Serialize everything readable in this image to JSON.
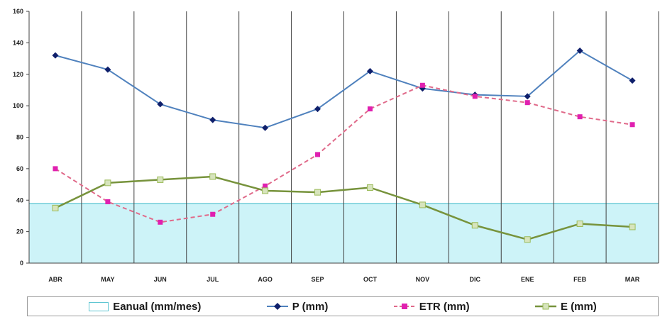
{
  "chart_data": {
    "type": "line",
    "categories": [
      "ABR",
      "MAY",
      "JUN",
      "JUL",
      "AGO",
      "SEP",
      "OCT",
      "NOV",
      "DIC",
      "ENE",
      "FEB",
      "MAR"
    ],
    "ylim": [
      0,
      160
    ],
    "yticks": [
      0,
      20,
      40,
      60,
      80,
      100,
      120,
      140,
      160
    ],
    "grid": {
      "vertical": true,
      "horizontal": false
    },
    "legend_position": "bottom",
    "series": [
      {
        "name": "Eanual (mm/mes)",
        "kind": "area",
        "color": "#cdf3f8",
        "edge_color": "#5fc6d2",
        "values": [
          37.9,
          37.9,
          37.9,
          37.9,
          37.9,
          37.9,
          37.9,
          37.9,
          37.9,
          37.9,
          37.9,
          37.9
        ]
      },
      {
        "name": "P (mm)",
        "kind": "line",
        "color": "#4f81bd",
        "marker": "diamond",
        "marker_color": "#0f1f6b",
        "values": [
          132,
          123,
          101,
          91,
          86,
          98,
          122,
          111,
          107,
          106,
          135,
          116
        ]
      },
      {
        "name": "ETR (mm)",
        "kind": "line",
        "color": "#e06a8a",
        "dash": true,
        "marker": "square",
        "marker_color": "#e020b0",
        "values": [
          60,
          39,
          26,
          31,
          49,
          69,
          98,
          113,
          106,
          102,
          93,
          88
        ]
      },
      {
        "name": "E (mm)",
        "kind": "line",
        "color": "#77933c",
        "marker": "square",
        "marker_color": "#d7e4bd",
        "values": [
          35,
          51,
          53,
          55,
          46,
          45,
          48,
          37,
          24,
          15,
          25,
          23
        ]
      }
    ]
  }
}
